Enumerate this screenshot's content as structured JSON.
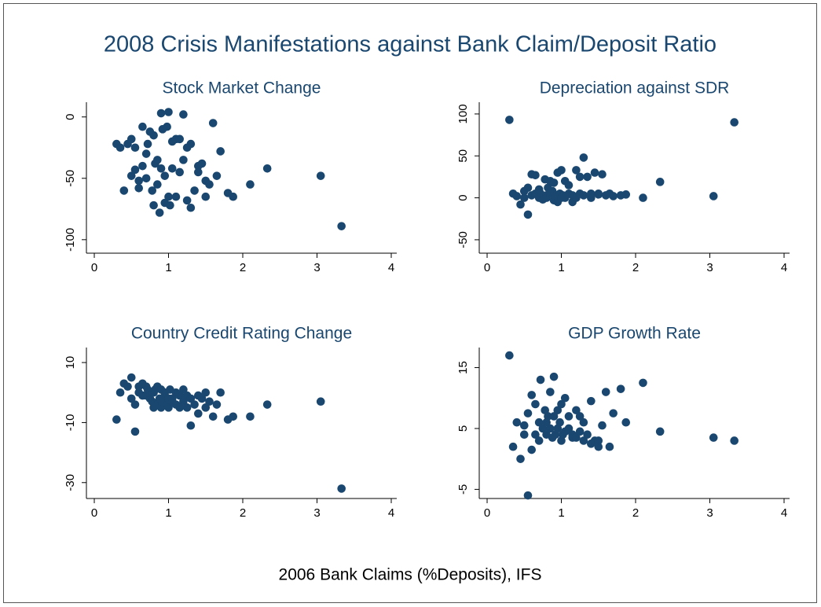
{
  "title": "2008 Crisis Manifestations against Bank Claim/Deposit Ratio",
  "xlabel": "2006 Bank Claims (%Deposits), IFS",
  "chart_data": [
    {
      "type": "scatter",
      "title": "Stock Market Change",
      "color": "#1a476f",
      "x": [
        0.3,
        0.35,
        0.4,
        0.45,
        0.5,
        0.5,
        0.55,
        0.55,
        0.6,
        0.6,
        0.65,
        0.65,
        0.7,
        0.7,
        0.72,
        0.75,
        0.78,
        0.8,
        0.8,
        0.82,
        0.85,
        0.85,
        0.88,
        0.9,
        0.9,
        0.92,
        0.95,
        0.95,
        0.98,
        1.0,
        1.0,
        1.02,
        1.05,
        1.05,
        1.1,
        1.1,
        1.15,
        1.15,
        1.2,
        1.2,
        1.25,
        1.25,
        1.3,
        1.3,
        1.35,
        1.4,
        1.4,
        1.45,
        1.5,
        1.5,
        1.55,
        1.6,
        1.65,
        1.7,
        1.8,
        1.87,
        2.1,
        2.33,
        3.05,
        3.33
      ],
      "values": [
        -22,
        -25,
        -60,
        -22,
        -18,
        -48,
        -43,
        -25,
        -58,
        -52,
        -8,
        -40,
        -50,
        -30,
        -22,
        -12,
        -60,
        -72,
        -15,
        -38,
        -35,
        -55,
        -78,
        3,
        -42,
        -10,
        -70,
        -48,
        -8,
        4,
        -65,
        -72,
        -20,
        -42,
        -18,
        -65,
        -18,
        -45,
        2,
        -35,
        -25,
        -68,
        -74,
        -22,
        -60,
        -40,
        -45,
        -38,
        -52,
        -65,
        -55,
        -5,
        -48,
        -28,
        -62,
        -65,
        -55,
        -42,
        -48,
        -89
      ],
      "xlim": [
        -0.106,
        4.074
      ],
      "xticks": [
        0,
        1,
        2,
        3,
        4
      ],
      "ylim": [
        -111,
        12
      ],
      "yticks": [
        0,
        -50,
        -100
      ]
    },
    {
      "type": "scatter",
      "title": "Depreciation against SDR",
      "color": "#1a476f",
      "x": [
        0.3,
        0.35,
        0.4,
        0.45,
        0.5,
        0.5,
        0.55,
        0.55,
        0.6,
        0.6,
        0.65,
        0.65,
        0.7,
        0.7,
        0.72,
        0.75,
        0.78,
        0.8,
        0.8,
        0.82,
        0.85,
        0.85,
        0.88,
        0.9,
        0.9,
        0.92,
        0.95,
        0.95,
        0.98,
        1.0,
        1.0,
        1.02,
        1.05,
        1.05,
        1.1,
        1.1,
        1.15,
        1.15,
        1.2,
        1.2,
        1.25,
        1.25,
        1.3,
        1.3,
        1.35,
        1.4,
        1.4,
        1.45,
        1.5,
        1.5,
        1.55,
        1.6,
        1.65,
        1.7,
        1.8,
        1.87,
        2.1,
        2.33,
        3.05,
        3.33
      ],
      "values": [
        93,
        5,
        2,
        -8,
        0,
        8,
        -20,
        12,
        28,
        3,
        5,
        27,
        0,
        10,
        5,
        -2,
        22,
        3,
        0,
        12,
        20,
        5,
        8,
        -3,
        18,
        2,
        -5,
        30,
        5,
        0,
        33,
        3,
        20,
        0,
        15,
        5,
        3,
        -5,
        33,
        0,
        5,
        25,
        48,
        3,
        25,
        5,
        0,
        30,
        5,
        4,
        28,
        3,
        5,
        2,
        3,
        4,
        0,
        19,
        2,
        90
      ],
      "xlim": [
        -0.106,
        4.074
      ],
      "xticks": [
        0,
        1,
        2,
        3,
        4
      ],
      "ylim": [
        -66,
        114
      ],
      "yticks": [
        100,
        50,
        0,
        -50
      ]
    },
    {
      "type": "scatter",
      "title": "Country Credit Rating Change",
      "color": "#1a476f",
      "x": [
        0.3,
        0.35,
        0.4,
        0.45,
        0.5,
        0.5,
        0.55,
        0.55,
        0.6,
        0.6,
        0.65,
        0.65,
        0.7,
        0.7,
        0.72,
        0.75,
        0.78,
        0.8,
        0.8,
        0.82,
        0.85,
        0.85,
        0.88,
        0.9,
        0.9,
        0.92,
        0.95,
        0.95,
        0.98,
        1.0,
        1.0,
        1.02,
        1.05,
        1.05,
        1.1,
        1.1,
        1.15,
        1.15,
        1.2,
        1.2,
        1.25,
        1.25,
        1.3,
        1.3,
        1.35,
        1.4,
        1.4,
        1.45,
        1.5,
        1.5,
        1.55,
        1.6,
        1.65,
        1.7,
        1.8,
        1.87,
        2.1,
        2.33,
        3.05,
        3.33
      ],
      "values": [
        -9,
        0,
        3,
        2,
        5,
        -2,
        -4,
        -13,
        0,
        2,
        3,
        -1,
        -1,
        2,
        1,
        -2,
        -3,
        0,
        -5,
        1,
        2,
        -4,
        -2,
        1,
        -5,
        -3,
        0,
        -1,
        -4,
        -2,
        -5,
        1,
        -3,
        -2,
        0,
        -4,
        -1,
        -5,
        1,
        -3,
        -1,
        -5,
        -11,
        -2,
        -4,
        -1,
        -7,
        -2,
        -5,
        0,
        -3,
        -8,
        -4,
        0,
        -9,
        -8,
        -8,
        -4,
        -3,
        -32
      ],
      "xlim": [
        -0.106,
        4.074
      ],
      "xticks": [
        0,
        1,
        2,
        3,
        4
      ],
      "ylim": [
        -35.3,
        15
      ],
      "yticks": [
        10,
        -10,
        -30
      ]
    },
    {
      "type": "scatter",
      "title": "GDP Growth Rate",
      "color": "#1a476f",
      "x": [
        0.3,
        0.35,
        0.4,
        0.45,
        0.5,
        0.5,
        0.55,
        0.55,
        0.6,
        0.6,
        0.65,
        0.65,
        0.7,
        0.7,
        0.72,
        0.75,
        0.78,
        0.8,
        0.8,
        0.82,
        0.85,
        0.85,
        0.88,
        0.9,
        0.9,
        0.92,
        0.95,
        0.95,
        0.98,
        1.0,
        1.0,
        1.02,
        1.05,
        1.05,
        1.1,
        1.1,
        1.15,
        1.15,
        1.2,
        1.2,
        1.25,
        1.25,
        1.3,
        1.3,
        1.35,
        1.4,
        1.4,
        1.45,
        1.5,
        1.5,
        1.55,
        1.6,
        1.65,
        1.7,
        1.8,
        1.87,
        2.1,
        2.33,
        3.05,
        3.33
      ],
      "values": [
        17,
        2,
        6,
        0,
        5.5,
        4,
        -6,
        7.5,
        1.5,
        10.5,
        9,
        4,
        6,
        3,
        13,
        5,
        8,
        4,
        6,
        7,
        11,
        5,
        3.5,
        7,
        13.5,
        4,
        5,
        8,
        6,
        3,
        9,
        4,
        10,
        4.5,
        5,
        7,
        3.5,
        4,
        8,
        3.5,
        4.5,
        7,
        6,
        3,
        4,
        9.5,
        2.5,
        3,
        3,
        2,
        5.5,
        11,
        2,
        7.5,
        11.5,
        6,
        12.5,
        4.5,
        3.5,
        3
      ],
      "xlim": [
        -0.106,
        4.074
      ],
      "xticks": [
        0,
        1,
        2,
        3,
        4
      ],
      "ylim": [
        -6.5,
        18.3
      ],
      "yticks": [
        15,
        5,
        -5
      ]
    }
  ]
}
